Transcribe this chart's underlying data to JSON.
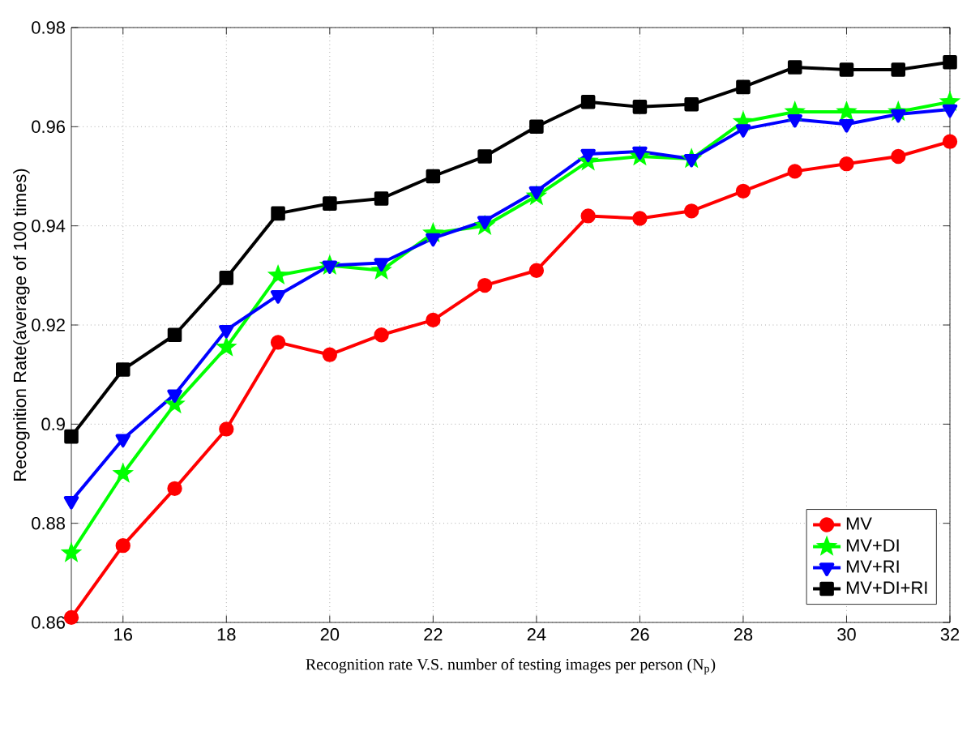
{
  "chart_data": {
    "type": "line",
    "xlabel": "Recognition rate V.S. number of testing images per person (N$_{p}$)",
    "ylabel": "Recognition Rate(average of 100 times)",
    "x": [
      15,
      16,
      17,
      18,
      19,
      20,
      21,
      22,
      23,
      24,
      25,
      26,
      27,
      28,
      29,
      30,
      31,
      32
    ],
    "series": [
      {
        "name": "MV",
        "color": "#ff0000",
        "marker": "circle",
        "values": [
          0.861,
          0.8755,
          0.887,
          0.899,
          0.9165,
          0.914,
          0.918,
          0.921,
          0.928,
          0.931,
          0.942,
          0.9415,
          0.943,
          0.947,
          0.951,
          0.9525,
          0.954,
          0.957
        ]
      },
      {
        "name": "MV+DI",
        "color": "#00ff00",
        "marker": "star",
        "values": [
          0.874,
          0.89,
          0.904,
          0.9155,
          0.93,
          0.932,
          0.931,
          0.9385,
          0.94,
          0.946,
          0.953,
          0.954,
          0.9535,
          0.961,
          0.963,
          0.963,
          0.963,
          0.965
        ]
      },
      {
        "name": "MV+RI",
        "color": "#0000ff",
        "marker": "triangle",
        "values": [
          0.8845,
          0.897,
          0.906,
          0.919,
          0.926,
          0.932,
          0.9325,
          0.9375,
          0.941,
          0.947,
          0.9545,
          0.955,
          0.9535,
          0.9595,
          0.9615,
          0.9605,
          0.9625,
          0.9635
        ]
      },
      {
        "name": "MV+DI+RI",
        "color": "#000000",
        "marker": "square",
        "values": [
          0.8975,
          0.911,
          0.918,
          0.9295,
          0.9425,
          0.9445,
          0.9455,
          0.95,
          0.954,
          0.96,
          0.965,
          0.964,
          0.9645,
          0.968,
          0.972,
          0.9715,
          0.9715,
          0.973
        ]
      }
    ],
    "xlim": [
      15,
      32
    ],
    "ylim": [
      0.86,
      0.98
    ],
    "xticks": [
      16,
      18,
      20,
      22,
      24,
      26,
      28,
      30,
      32
    ],
    "yticks": [
      0.86,
      0.88,
      0.9,
      0.92,
      0.94,
      0.96,
      0.98
    ],
    "grid": true,
    "legend": "bottom right",
    "line_style": "solid"
  }
}
